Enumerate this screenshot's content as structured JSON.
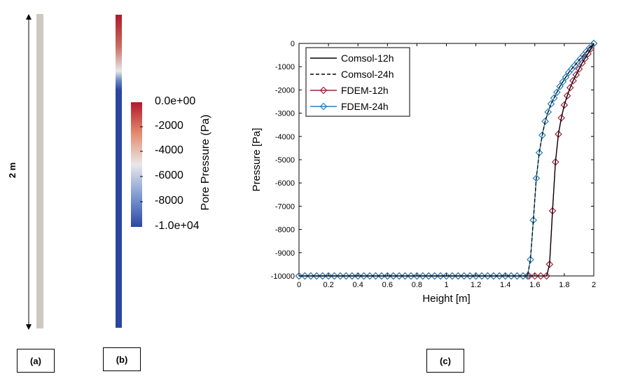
{
  "panel_a": {
    "label": "(a)",
    "dimension_label": "2 m",
    "column_color": "#cdc9c1"
  },
  "panel_b": {
    "label": "(b)",
    "colorbar": {
      "title": "Pore Pressure (Pa)",
      "ticks": [
        "0.0e+00",
        "-2000",
        "-4000",
        "-6000",
        "-8000",
        "-1.0e+04"
      ],
      "range": [
        -10000,
        0
      ],
      "colors": {
        "high": "#b2182b",
        "mid": "#e8e8e8",
        "low": "#2b45a3"
      }
    }
  },
  "panel_c": {
    "label": "(c)"
  },
  "chart_data": {
    "type": "line",
    "xlabel": "Height [m]",
    "ylabel": "Pressure [Pa]",
    "xlim": [
      0,
      2
    ],
    "ylim": [
      -10000,
      0
    ],
    "xticks": [
      "0",
      "0.2",
      "0.4",
      "0.6",
      "0.8",
      "1",
      "1.2",
      "1.4",
      "1.6",
      "1.8",
      "2"
    ],
    "yticks": [
      "0",
      "-1000",
      "-2000",
      "-3000",
      "-4000",
      "-5000",
      "-6000",
      "-7000",
      "-8000",
      "-9000",
      "-10000"
    ],
    "grid": false,
    "legend_position": "top-left",
    "series": [
      {
        "name": "Comsol-12h",
        "color": "#000000",
        "style": "solid",
        "marker": "none",
        "x": [
          0,
          1.68,
          1.7,
          1.72,
          1.74,
          1.76,
          1.78,
          1.8,
          1.82,
          1.84,
          1.86,
          1.88,
          1.9,
          1.92,
          1.94,
          1.96,
          1.98,
          2.0
        ],
        "y": [
          -10000,
          -10000,
          -9500,
          -7200,
          -5100,
          -3900,
          -3200,
          -2650,
          -2250,
          -1900,
          -1600,
          -1350,
          -1100,
          -850,
          -650,
          -450,
          -230,
          0
        ]
      },
      {
        "name": "Comsol-24h",
        "color": "#000000",
        "style": "dashed",
        "marker": "none",
        "x": [
          0,
          1.55,
          1.57,
          1.59,
          1.61,
          1.63,
          1.65,
          1.67,
          1.69,
          1.71,
          1.73,
          1.75,
          1.77,
          1.79,
          1.81,
          1.83,
          1.85,
          1.87,
          1.89,
          1.91,
          1.93,
          1.95,
          1.97,
          2.0
        ],
        "y": [
          -10000,
          -10000,
          -9300,
          -7600,
          -5800,
          -4700,
          -3950,
          -3350,
          -2950,
          -2600,
          -2350,
          -2100,
          -1850,
          -1650,
          -1450,
          -1250,
          -1100,
          -950,
          -800,
          -650,
          -500,
          -350,
          -200,
          0
        ]
      },
      {
        "name": "FDEM-12h",
        "color": "#a0203a",
        "style": "solid",
        "marker": "diamond",
        "x": [
          0,
          0.04,
          0.08,
          0.12,
          0.16,
          0.2,
          0.24,
          0.28,
          0.32,
          0.36,
          0.4,
          0.44,
          0.48,
          0.52,
          0.56,
          0.6,
          0.64,
          0.68,
          0.72,
          0.76,
          0.8,
          0.84,
          0.88,
          0.92,
          0.96,
          1.0,
          1.04,
          1.08,
          1.12,
          1.16,
          1.2,
          1.24,
          1.28,
          1.32,
          1.36,
          1.4,
          1.44,
          1.48,
          1.52,
          1.56,
          1.6,
          1.64,
          1.68,
          1.7,
          1.72,
          1.74,
          1.76,
          1.78,
          1.8,
          1.82,
          1.84,
          1.86,
          1.88,
          1.9,
          1.92,
          1.94,
          1.96,
          1.98,
          2.0
        ],
        "y": [
          -10000,
          -10000,
          -10000,
          -10000,
          -10000,
          -10000,
          -10000,
          -10000,
          -10000,
          -10000,
          -10000,
          -10000,
          -10000,
          -10000,
          -10000,
          -10000,
          -10000,
          -10000,
          -10000,
          -10000,
          -10000,
          -10000,
          -10000,
          -10000,
          -10000,
          -10000,
          -10000,
          -10000,
          -10000,
          -10000,
          -10000,
          -10000,
          -10000,
          -10000,
          -10000,
          -10000,
          -10000,
          -10000,
          -10000,
          -10000,
          -10000,
          -10000,
          -10000,
          -9500,
          -7200,
          -5100,
          -3900,
          -3200,
          -2650,
          -2250,
          -1900,
          -1600,
          -1350,
          -1100,
          -850,
          -650,
          -450,
          -230,
          0
        ]
      },
      {
        "name": "FDEM-24h",
        "color": "#2a7fb8",
        "style": "solid",
        "marker": "diamond",
        "x": [
          0,
          0.04,
          0.08,
          0.12,
          0.16,
          0.2,
          0.24,
          0.28,
          0.32,
          0.36,
          0.4,
          0.44,
          0.48,
          0.52,
          0.56,
          0.6,
          0.64,
          0.68,
          0.72,
          0.76,
          0.8,
          0.84,
          0.88,
          0.92,
          0.96,
          1.0,
          1.04,
          1.08,
          1.12,
          1.16,
          1.2,
          1.24,
          1.28,
          1.32,
          1.36,
          1.4,
          1.44,
          1.48,
          1.52,
          1.55,
          1.57,
          1.59,
          1.61,
          1.63,
          1.65,
          1.67,
          1.69,
          1.71,
          1.73,
          1.75,
          1.77,
          1.79,
          1.81,
          1.83,
          1.85,
          1.87,
          1.89,
          1.91,
          1.93,
          1.95,
          1.97,
          2.0
        ],
        "y": [
          -10000,
          -10000,
          -10000,
          -10000,
          -10000,
          -10000,
          -10000,
          -10000,
          -10000,
          -10000,
          -10000,
          -10000,
          -10000,
          -10000,
          -10000,
          -10000,
          -10000,
          -10000,
          -10000,
          -10000,
          -10000,
          -10000,
          -10000,
          -10000,
          -10000,
          -10000,
          -10000,
          -10000,
          -10000,
          -10000,
          -10000,
          -10000,
          -10000,
          -10000,
          -10000,
          -10000,
          -10000,
          -10000,
          -10000,
          -10000,
          -9300,
          -7600,
          -5800,
          -4700,
          -3950,
          -3350,
          -2950,
          -2600,
          -2350,
          -2100,
          -1850,
          -1650,
          -1450,
          -1250,
          -1100,
          -950,
          -800,
          -650,
          -500,
          -350,
          -200,
          0
        ]
      }
    ]
  }
}
